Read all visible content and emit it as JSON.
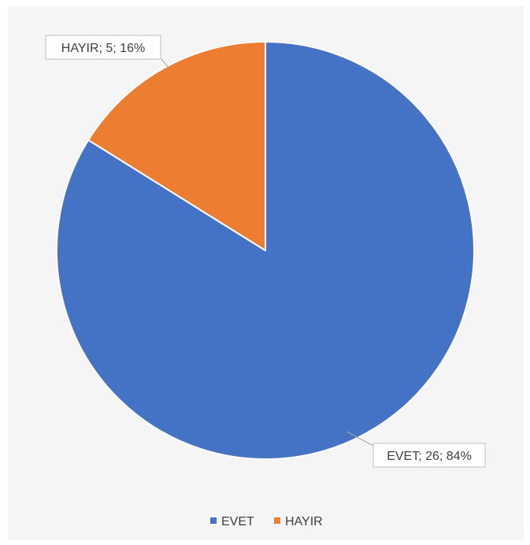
{
  "chart_data": {
    "type": "pie",
    "categories": [
      "EVET",
      "HAYIR"
    ],
    "values": [
      26,
      5
    ],
    "percents": [
      84,
      16
    ],
    "colors": [
      "#4472c4",
      "#ed7d31"
    ],
    "data_labels": [
      "EVET; 26; 84%",
      "HAYIR; 5; 16%"
    ],
    "legend": {
      "position": "bottom",
      "items": [
        "EVET",
        "HAYIR"
      ]
    },
    "title": ""
  }
}
